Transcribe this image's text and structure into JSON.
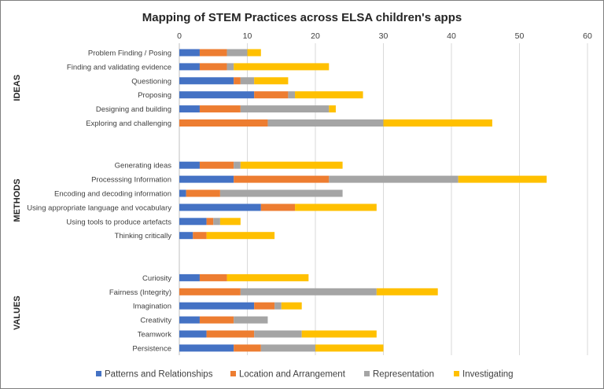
{
  "chart_data": {
    "type": "bar",
    "orientation": "horizontal",
    "stacked": true,
    "title": "Mapping of STEM Practices across ELSA children's apps",
    "xlim": [
      0,
      60
    ],
    "xticks": [
      "0",
      "10",
      "20",
      "30",
      "40",
      "50",
      "60"
    ],
    "grid": true,
    "axis_position": "top",
    "legend_position": "bottom",
    "groups": [
      {
        "name": "IDEAS",
        "categories": [
          "Problem Finding / Posing",
          "Finding and validating evidence",
          "Questioning",
          "Proposing",
          "Designing and building",
          "Exploring and challenging"
        ]
      },
      {
        "name": "METHODS",
        "categories": [
          "Generating ideas",
          "Processsing Information",
          "Encoding and decoding information",
          "Using appropriate language and vocabulary",
          "Using tools to produce artefacts",
          "Thinking critically"
        ]
      },
      {
        "name": "VALUES",
        "categories": [
          "Curiosity",
          "Fairness (Integrity)",
          "Imagination",
          "Creativity",
          "Teamwork",
          "Persistence"
        ]
      }
    ],
    "series": [
      {
        "name": "Patterns and Relationships",
        "color": "#4472C4",
        "values": [
          3,
          3,
          8,
          11,
          3,
          0,
          3,
          8,
          1,
          12,
          4,
          2,
          3,
          0,
          11,
          3,
          4,
          8
        ]
      },
      {
        "name": "Location and Arrangement",
        "color": "#ED7D31",
        "values": [
          4,
          4,
          1,
          5,
          6,
          13,
          5,
          14,
          5,
          5,
          1,
          2,
          4,
          9,
          3,
          5,
          7,
          4
        ]
      },
      {
        "name": "Representation",
        "color": "#A5A5A5",
        "values": [
          3,
          1,
          2,
          1,
          13,
          17,
          1,
          19,
          18,
          0,
          1,
          0,
          0,
          20,
          1,
          5,
          7,
          8
        ]
      },
      {
        "name": "Investigating",
        "color": "#FFC000",
        "values": [
          2,
          14,
          5,
          10,
          1,
          16,
          15,
          13,
          0,
          12,
          3,
          10,
          12,
          9,
          3,
          0,
          11,
          10
        ]
      }
    ]
  }
}
